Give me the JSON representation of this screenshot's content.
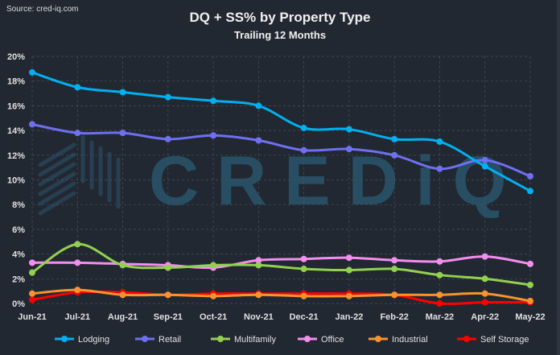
{
  "source": "Source: cred-iq.com",
  "watermark": "CREDiQ",
  "chart_data": {
    "type": "line",
    "title": "DQ + SS% by Property Type",
    "subtitle": "Trailing 12 Months",
    "categories": [
      "Jun-21",
      "Jul-21",
      "Aug-21",
      "Sep-21",
      "Oct-21",
      "Nov-21",
      "Dec-21",
      "Jan-22",
      "Feb-22",
      "Mar-22",
      "Apr-22",
      "May-22"
    ],
    "yticks": [
      "0%",
      "2%",
      "4%",
      "6%",
      "8%",
      "10%",
      "12%",
      "14%",
      "16%",
      "18%",
      "20%"
    ],
    "ylim": [
      0,
      20
    ],
    "yunit": "%",
    "grid": true,
    "legend_position": "bottom",
    "series": [
      {
        "name": "Lodging",
        "color": "#00b0f0",
        "values": [
          18.7,
          17.5,
          17.1,
          16.7,
          16.4,
          16.0,
          14.2,
          14.1,
          13.3,
          13.1,
          11.1,
          9.1
        ]
      },
      {
        "name": "Retail",
        "color": "#6f6ff2",
        "values": [
          14.5,
          13.8,
          13.8,
          13.3,
          13.6,
          13.2,
          12.4,
          12.5,
          12.0,
          10.9,
          11.6,
          10.3
        ]
      },
      {
        "name": "Multifamily",
        "color": "#92d050",
        "values": [
          2.5,
          4.8,
          3.1,
          2.9,
          3.1,
          3.1,
          2.8,
          2.7,
          2.8,
          2.3,
          2.0,
          1.5
        ]
      },
      {
        "name": "Office",
        "color": "#f38ef0",
        "values": [
          3.3,
          3.3,
          3.2,
          3.1,
          2.9,
          3.5,
          3.6,
          3.7,
          3.5,
          3.4,
          3.8,
          3.2
        ]
      },
      {
        "name": "Industrial",
        "color": "#f7932f",
        "values": [
          0.8,
          1.1,
          0.7,
          0.7,
          0.6,
          0.7,
          0.6,
          0.6,
          0.7,
          0.7,
          0.8,
          0.2
        ]
      },
      {
        "name": "Self Storage",
        "color": "#ff0000",
        "values": [
          0.3,
          0.9,
          0.9,
          0.7,
          0.8,
          0.8,
          0.8,
          0.8,
          0.7,
          0.0,
          0.1,
          0.1
        ]
      }
    ]
  }
}
